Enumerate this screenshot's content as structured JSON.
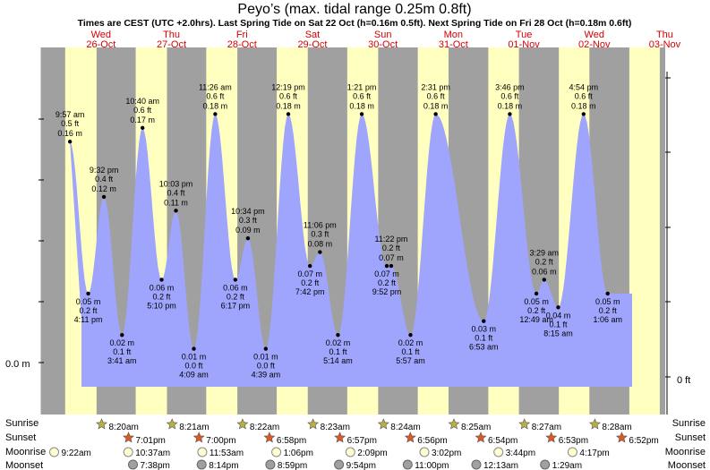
{
  "chart_data": {
    "type": "area",
    "title": "Peyo’s (max. tidal range 0.25m 0.8ft)",
    "subtitle": "Times are CEST (UTC +2.0hrs). Last Spring Tide on Sat 22 Oct (h=0.16m 0.5ft). Next Spring Tide on Fri 28 Oct (h=0.18m 0.6ft)",
    "y_left_label": "0.0 m",
    "y_right_label": "0 ft",
    "ylim_m": [
      -0.04,
      0.24
    ],
    "days": [
      {
        "dow": "Wed",
        "date": "26-Oct"
      },
      {
        "dow": "Thu",
        "date": "27-Oct"
      },
      {
        "dow": "Fri",
        "date": "28-Oct"
      },
      {
        "dow": "Sat",
        "date": "29-Oct"
      },
      {
        "dow": "Sun",
        "date": "30-Oct"
      },
      {
        "dow": "Mon",
        "date": "31-Oct"
      },
      {
        "dow": "Tue",
        "date": "01-Nov"
      },
      {
        "dow": "Wed",
        "date": "02-Nov"
      },
      {
        "dow": "Thu",
        "date": "03-Nov"
      }
    ],
    "tides": [
      {
        "time": "4:11 pm",
        "m": "0.05 m",
        "ft": "0.2 ft",
        "value": 0.05,
        "type": "low",
        "day": 0,
        "hour": 16.18
      },
      {
        "time": "9:57 am",
        "m": "0.16 m",
        "ft": "0.5 ft",
        "value": 0.16,
        "type": "high",
        "day": 0,
        "hour": 9.95
      },
      {
        "time": "9:32 pm",
        "m": "0.12 m",
        "ft": "0.4 ft",
        "value": 0.12,
        "type": "high",
        "day": 0,
        "hour": 21.53
      },
      {
        "time": "3:41 am",
        "m": "0.02 m",
        "ft": "0.1 ft",
        "value": 0.02,
        "type": "low",
        "day": 1,
        "hour": 3.68
      },
      {
        "time": "10:40 am",
        "m": "0.17 m",
        "ft": "0.6 ft",
        "value": 0.17,
        "type": "high",
        "day": 1,
        "hour": 10.67
      },
      {
        "time": "5:10 pm",
        "m": "0.06 m",
        "ft": "0.2 ft",
        "value": 0.06,
        "type": "low",
        "day": 1,
        "hour": 17.17
      },
      {
        "time": "10:03 pm",
        "m": "0.11 m",
        "ft": "0.4 ft",
        "value": 0.11,
        "type": "high",
        "day": 1,
        "hour": 22.05
      },
      {
        "time": "4:09 am",
        "m": "0.01 m",
        "ft": "0.0 ft",
        "value": 0.01,
        "type": "low",
        "day": 2,
        "hour": 4.15
      },
      {
        "time": "11:26 am",
        "m": "0.18 m",
        "ft": "0.6 ft",
        "value": 0.18,
        "type": "high",
        "day": 2,
        "hour": 11.43
      },
      {
        "time": "6:17 pm",
        "m": "0.06 m",
        "ft": "0.2 ft",
        "value": 0.06,
        "type": "low",
        "day": 2,
        "hour": 18.28
      },
      {
        "time": "10:34 pm",
        "m": "0.09 m",
        "ft": "0.3 ft",
        "value": 0.09,
        "type": "high",
        "day": 2,
        "hour": 22.57
      },
      {
        "time": "4:39 am",
        "m": "0.01 m",
        "ft": "0.0 ft",
        "value": 0.01,
        "type": "low",
        "day": 3,
        "hour": 4.65
      },
      {
        "time": "12:19 pm",
        "m": "0.18 m",
        "ft": "0.6 ft",
        "value": 0.18,
        "type": "high",
        "day": 3,
        "hour": 12.32
      },
      {
        "time": "7:42 pm",
        "m": "0.07 m",
        "ft": "0.2 ft",
        "value": 0.07,
        "type": "low",
        "day": 3,
        "hour": 19.7
      },
      {
        "time": "11:06 pm",
        "m": "0.08 m",
        "ft": "0.3 ft",
        "value": 0.08,
        "type": "high",
        "day": 3,
        "hour": 23.1
      },
      {
        "time": "5:14 am",
        "m": "0.02 m",
        "ft": "0.1 ft",
        "value": 0.02,
        "type": "low",
        "day": 4,
        "hour": 5.23
      },
      {
        "time": "1:21 pm",
        "m": "0.18 m",
        "ft": "0.6 ft",
        "value": 0.18,
        "type": "high",
        "day": 4,
        "hour": 13.35
      },
      {
        "time": "9:52 pm",
        "m": "0.07 m",
        "ft": "0.2 ft",
        "value": 0.07,
        "type": "low",
        "day": 4,
        "hour": 21.87
      },
      {
        "time": "11:22 pm",
        "m": "0.07 m",
        "ft": "0.2 ft",
        "value": 0.07,
        "type": "high",
        "day": 4,
        "hour": 23.37
      },
      {
        "time": "5:57 am",
        "m": "0.02 m",
        "ft": "0.1 ft",
        "value": 0.02,
        "type": "low",
        "day": 5,
        "hour": 5.95
      },
      {
        "time": "2:31 pm",
        "m": "0.18 m",
        "ft": "0.6 ft",
        "value": 0.18,
        "type": "high",
        "day": 5,
        "hour": 14.52
      },
      {
        "time": "6:53 am",
        "m": "0.03 m",
        "ft": "0.1 ft",
        "value": 0.03,
        "type": "low",
        "day": 6,
        "hour": 6.88
      },
      {
        "time": "3:46 pm",
        "m": "0.18 m",
        "ft": "0.6 ft",
        "value": 0.18,
        "type": "high",
        "day": 6,
        "hour": 15.77
      },
      {
        "time": "12:49 am",
        "m": "0.05 m",
        "ft": "0.2 ft",
        "value": 0.05,
        "type": "low",
        "day": 7,
        "hour": 0.82
      },
      {
        "time": "3:29 am",
        "m": "0.06 m",
        "ft": "0.2 ft",
        "value": 0.06,
        "type": "high",
        "day": 7,
        "hour": 3.48
      },
      {
        "time": "8:15 am",
        "m": "0.04 m",
        "ft": "0.1 ft",
        "value": 0.04,
        "type": "low",
        "day": 7,
        "hour": 8.25
      },
      {
        "time": "4:54 pm",
        "m": "0.18 m",
        "ft": "0.6 ft",
        "value": 0.18,
        "type": "high",
        "day": 7,
        "hour": 16.9
      },
      {
        "time": "1:06 am",
        "m": "0.05 m",
        "ft": "0.2 ft",
        "value": 0.05,
        "type": "low",
        "day": 8,
        "hour": 1.1
      }
    ],
    "daylight": [
      {
        "day": 0,
        "sunrise_h": 8.33,
        "sunset_h": 19.02
      },
      {
        "day": 1,
        "sunrise_h": 8.35,
        "sunset_h": 19.0
      },
      {
        "day": 2,
        "sunrise_h": 8.37,
        "sunset_h": 18.97
      },
      {
        "day": 3,
        "sunrise_h": 8.38,
        "sunset_h": 18.95
      },
      {
        "day": 4,
        "sunrise_h": 8.4,
        "sunset_h": 18.93
      },
      {
        "day": 5,
        "sunrise_h": 8.42,
        "sunset_h": 18.9
      },
      {
        "day": 6,
        "sunrise_h": 8.45,
        "sunset_h": 18.88
      },
      {
        "day": 7,
        "sunrise_h": 8.47,
        "sunset_h": 18.87
      },
      {
        "day": 8,
        "sunrise_h": 8.48,
        "sunset_h": 18.85
      }
    ],
    "row_labels": {
      "sunrise": "Sunrise",
      "sunset": "Sunset",
      "moonrise": "Moonrise",
      "moonset": "Moonset"
    },
    "sunrise": [
      "8:20am",
      "8:21am",
      "8:22am",
      "8:23am",
      "8:24am",
      "8:25am",
      "8:27am",
      "8:28am"
    ],
    "sunset": [
      "7:01pm",
      "7:00pm",
      "6:58pm",
      "6:57pm",
      "6:56pm",
      "6:54pm",
      "6:53pm",
      "6:52pm"
    ],
    "moonrise": [
      "9:22am",
      "10:37am",
      "11:53am",
      "1:06pm",
      "2:09pm",
      "3:02pm",
      "3:44pm",
      "4:17pm"
    ],
    "moonset": [
      "7:38pm",
      "8:14pm",
      "8:59pm",
      "9:54pm",
      "11:00pm",
      "12:13am",
      "1:29am"
    ],
    "colors": {
      "water": "#9fa5fc",
      "day": "#ffffc0",
      "night": "#a0a0a0",
      "date": "#d40000",
      "sun_star": "#b8b040",
      "sunset_star": "#e05820",
      "moon_light": "#ffffd0",
      "moon_dark": "#a0a0a0"
    }
  }
}
